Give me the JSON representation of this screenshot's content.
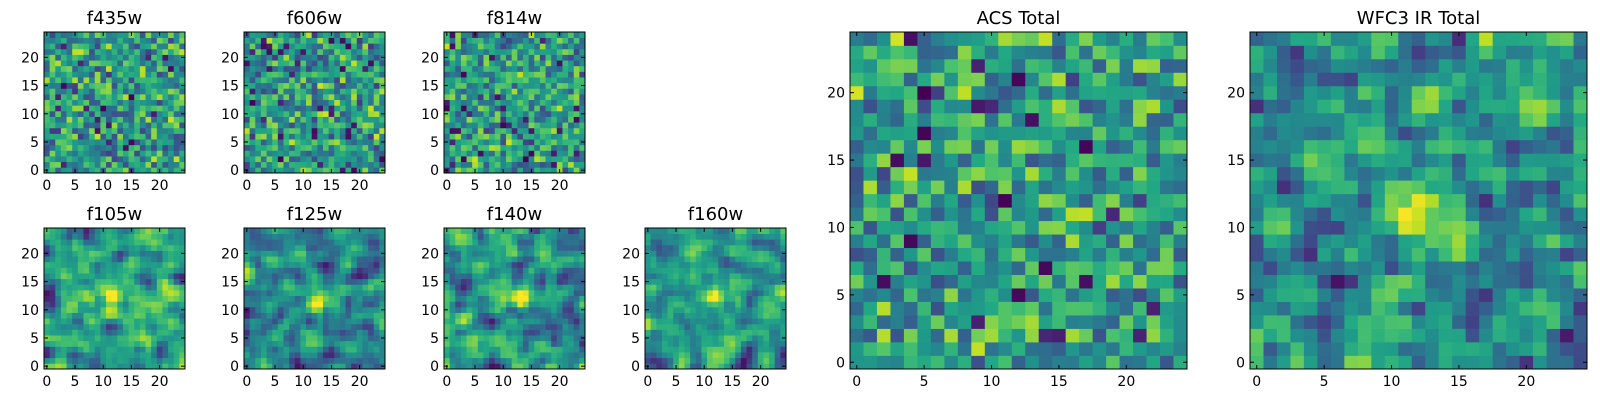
{
  "chart_data": [
    {
      "type": "heatmap",
      "title": "f435w",
      "colormap": "viridis",
      "grid_size": 25,
      "seed": 11,
      "sigma": 0.0,
      "blob": null,
      "xticks": [
        0,
        5,
        10,
        15,
        20
      ],
      "yticks": [
        0,
        5,
        10,
        15,
        20
      ],
      "xlim": [
        -0.5,
        24.5
      ],
      "ylim": [
        -0.5,
        24.5
      ]
    },
    {
      "type": "heatmap",
      "title": "f606w",
      "colormap": "viridis",
      "grid_size": 25,
      "seed": 23,
      "sigma": 0.0,
      "blob": null,
      "xticks": [
        0,
        5,
        10,
        15,
        20
      ],
      "yticks": [
        0,
        5,
        10,
        15,
        20
      ],
      "xlim": [
        -0.5,
        24.5
      ],
      "ylim": [
        -0.5,
        24.5
      ]
    },
    {
      "type": "heatmap",
      "title": "f814w",
      "colormap": "viridis",
      "grid_size": 25,
      "seed": 37,
      "sigma": 0.0,
      "blob": null,
      "xticks": [
        0,
        5,
        10,
        15,
        20
      ],
      "yticks": [
        0,
        5,
        10,
        15,
        20
      ],
      "xlim": [
        -0.5,
        24.5
      ],
      "ylim": [
        -0.5,
        24.5
      ]
    },
    {
      "type": "heatmap",
      "title": "f105w",
      "colormap": "viridis",
      "grid_size": 25,
      "seed": 41,
      "sigma": 0.8,
      "blob": [
        12,
        12
      ],
      "xticks": [
        0,
        5,
        10,
        15,
        20
      ],
      "yticks": [
        0,
        5,
        10,
        15,
        20
      ],
      "xlim": [
        -0.5,
        24.5
      ],
      "ylim": [
        -0.5,
        24.5
      ]
    },
    {
      "type": "heatmap",
      "title": "f125w",
      "colormap": "viridis",
      "grid_size": 25,
      "seed": 53,
      "sigma": 0.8,
      "blob": [
        12,
        11
      ],
      "xticks": [
        0,
        5,
        10,
        15,
        20
      ],
      "yticks": [
        0,
        5,
        10,
        15,
        20
      ],
      "xlim": [
        -0.5,
        24.5
      ],
      "ylim": [
        -0.5,
        24.5
      ]
    },
    {
      "type": "heatmap",
      "title": "f140w",
      "colormap": "viridis",
      "grid_size": 25,
      "seed": 67,
      "sigma": 0.8,
      "blob": [
        12,
        12
      ],
      "xticks": [
        0,
        5,
        10,
        15,
        20
      ],
      "yticks": [
        0,
        5,
        10,
        15,
        20
      ],
      "xlim": [
        -0.5,
        24.5
      ],
      "ylim": [
        -0.5,
        24.5
      ]
    },
    {
      "type": "heatmap",
      "title": "f160w",
      "colormap": "viridis",
      "grid_size": 25,
      "seed": 79,
      "sigma": 0.8,
      "blob": [
        12,
        12
      ],
      "xticks": [
        0,
        5,
        10,
        15,
        20
      ],
      "yticks": [
        0,
        5,
        10,
        15,
        20
      ],
      "xlim": [
        -0.5,
        24.5
      ],
      "ylim": [
        -0.5,
        24.5
      ]
    },
    {
      "type": "heatmap",
      "title": "ACS Total",
      "colormap": "viridis",
      "grid_size": 25,
      "seed": 97,
      "sigma": 0.0,
      "blob": null,
      "xticks": [
        0,
        5,
        10,
        15,
        20
      ],
      "yticks": [
        0,
        5,
        10,
        15,
        20
      ],
      "xlim": [
        -0.5,
        24.5
      ],
      "ylim": [
        -0.5,
        24.5
      ]
    },
    {
      "type": "heatmap",
      "title": "WFC3 IR Total",
      "colormap": "viridis",
      "grid_size": 25,
      "seed": 113,
      "sigma": 0.6,
      "blob": [
        12,
        12
      ],
      "xticks": [
        0,
        5,
        10,
        15,
        20
      ],
      "yticks": [
        0,
        5,
        10,
        15,
        20
      ],
      "xlim": [
        -0.5,
        24.5
      ],
      "ylim": [
        -0.5,
        24.5
      ]
    }
  ]
}
